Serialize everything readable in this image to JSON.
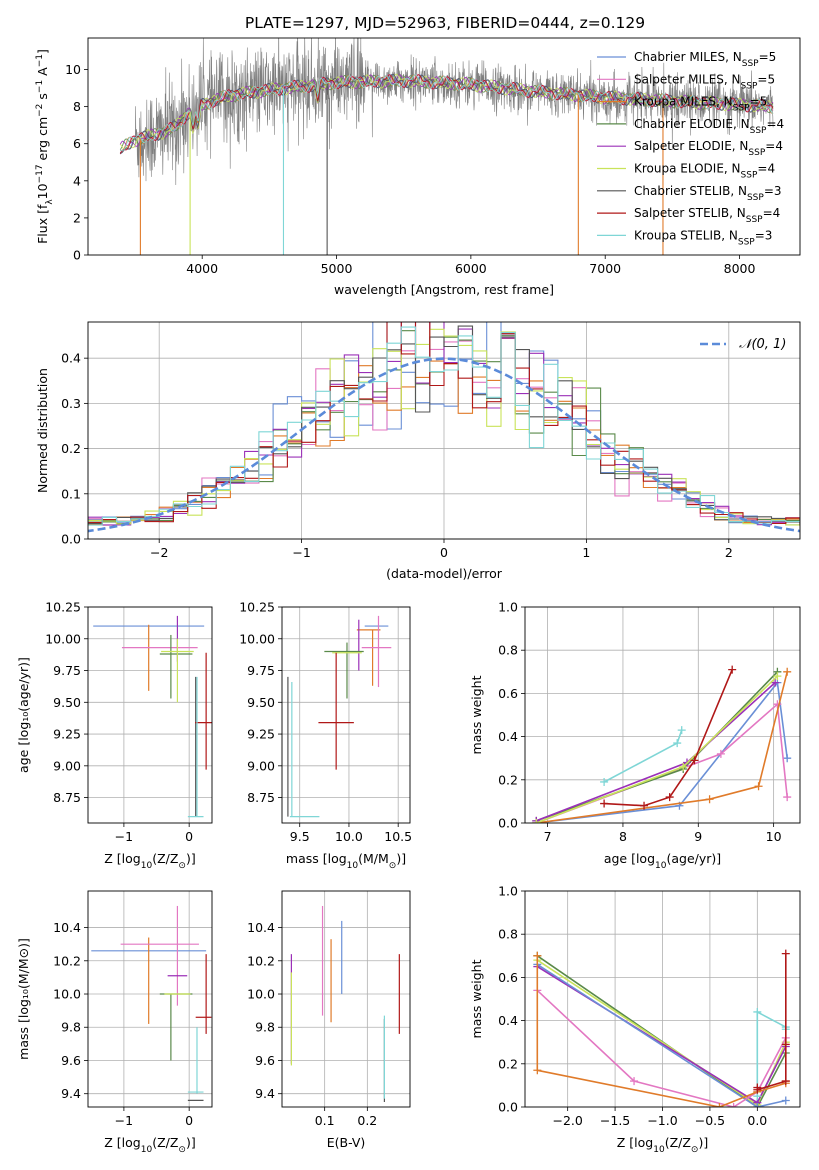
{
  "title": "PLATE=1297, MJD=52963, FIBERID=0444, z=0.129",
  "colors": {
    "chabrier_miles": "#6a8fd6",
    "salpeter_miles": "#e377c2",
    "kroupa_miles": "#e07b2a",
    "chabrier_elodie": "#5a8a4a",
    "salpeter_elodie": "#9b30b8",
    "kroupa_elodie": "#c9e35a",
    "chabrier_stelib": "#555555",
    "salpeter_stelib": "#b01818",
    "kroupa_stelib": "#7fd6d6",
    "gaussian": "#5b8bd9"
  },
  "chart_data": [
    {
      "id": "spectrum",
      "type": "line",
      "xlabel": "wavelength [Angstrom, rest frame]",
      "ylabel_main": "Flux [f",
      "ylabel_sub": "λ",
      "ylabel_rest": "10",
      "ylabel_sup": "−17",
      "ylabel_units": " erg cm",
      "ylabel_sup2": "−2",
      "ylabel_s": " s",
      "ylabel_sup3": "−1",
      "ylabel_a": " A",
      "ylabel_sup4": "−1",
      "ylabel_end": "]",
      "xlim": [
        3150,
        8450
      ],
      "ylim": [
        0,
        11.7
      ],
      "xticks": [
        4000,
        5000,
        6000,
        7000,
        8000
      ],
      "yticks": [
        0,
        2,
        4,
        6,
        8,
        10
      ],
      "legend_position": "upper-right",
      "legend": [
        {
          "name": "Chabrier MILES, N",
          "sub": "SSP",
          "n": "=5",
          "color": "#6a8fd6"
        },
        {
          "name": "Salpeter MILES, N",
          "sub": "SSP",
          "n": "=5",
          "color": "#e377c2"
        },
        {
          "name": "Kroupa MILES, N",
          "sub": "SSP",
          "n": "=5",
          "color": "#e07b2a"
        },
        {
          "name": "Chabrier ELODIE, N",
          "sub": "SSP",
          "n": "=4",
          "color": "#5a8a4a"
        },
        {
          "name": "Salpeter ELODIE, N",
          "sub": "SSP",
          "n": "=4",
          "color": "#9b30b8"
        },
        {
          "name": "Kroupa ELODIE, N",
          "sub": "SSP",
          "n": "=4",
          "color": "#c9e35a"
        },
        {
          "name": "Chabrier STELIB, N",
          "sub": "SSP",
          "n": "=3",
          "color": "#555555"
        },
        {
          "name": "Salpeter STELIB, N",
          "sub": "SSP",
          "n": "=4",
          "color": "#b01818"
        },
        {
          "name": "Kroupa STELIB, N",
          "sub": "SSP",
          "n": "=3",
          "color": "#7fd6d6"
        }
      ],
      "continuum_knots": [
        [
          3390,
          5.7
        ],
        [
          3500,
          6.2
        ],
        [
          3600,
          6.4
        ],
        [
          3700,
          6.6
        ],
        [
          3800,
          6.9
        ],
        [
          3900,
          7.7
        ],
        [
          4000,
          8.1
        ],
        [
          4200,
          8.6
        ],
        [
          4500,
          8.9
        ],
        [
          5000,
          9.3
        ],
        [
          5500,
          9.4
        ],
        [
          6000,
          9.2
        ],
        [
          6500,
          8.8
        ],
        [
          7000,
          8.5
        ],
        [
          7500,
          8.3
        ],
        [
          8000,
          8.1
        ],
        [
          8250,
          8.0
        ]
      ],
      "dips_to_zero": [
        [
          3540,
          "#e07b2a"
        ],
        [
          3910,
          "#c9e35a"
        ],
        [
          4605,
          "#7fd6d6"
        ],
        [
          4930,
          "#555555"
        ],
        [
          6800,
          "#e07b2a"
        ],
        [
          7430,
          "#e07b2a"
        ]
      ]
    },
    {
      "id": "residual-histogram",
      "type": "line",
      "xlabel": "(data-model)/error",
      "ylabel": "Normed distribution",
      "xlim": [
        -2.5,
        2.5
      ],
      "ylim": [
        0,
        0.48
      ],
      "xticks": [
        -2,
        -1,
        0,
        1,
        2
      ],
      "yticks": [
        0.0,
        0.1,
        0.2,
        0.3,
        0.4
      ],
      "ytick_labels": [
        "0.0",
        "0.1",
        "0.2",
        "0.3",
        "0.4"
      ],
      "legend_label": "𝒩(0, 1)",
      "legend_position": "upper-right",
      "bin_width": 0.1,
      "gaussian": {
        "mu": 0,
        "sigma": 1
      }
    },
    {
      "id": "age-vs-Z",
      "type": "scatter",
      "xlabel": "Z [log",
      "xlabel_sub": "10",
      "xlabel_rest": "(Z/Z",
      "xlabel_sub2": "⊙",
      "xlabel_end": ")]",
      "ylabel": "age  [log₁₀(age/yr)]",
      "xlim": [
        -1.55,
        0.35
      ],
      "ylim": [
        8.55,
        10.25
      ],
      "xticks": [
        -1,
        0
      ],
      "yticks": [
        8.75,
        9.0,
        9.25,
        9.5,
        9.75,
        10.0,
        10.25
      ],
      "ytick_labels": [
        "8.75",
        "9.00",
        "9.25",
        "9.50",
        "9.75",
        "10.00",
        "10.25"
      ],
      "points": [
        {
          "x": -0.62,
          "xerr": 0.85,
          "y": 10.1,
          "yerr": 0.0,
          "color": "#6a8fd6"
        },
        {
          "x": -0.62,
          "xerr": 0.0,
          "y": 9.85,
          "yerr": 0.26,
          "color": "#e07b2a"
        },
        {
          "x": -0.45,
          "xerr": 0.58,
          "y": 9.93,
          "yerr": 0.0,
          "color": "#e377c2"
        },
        {
          "x": -0.18,
          "xerr": 0.0,
          "y": 10.0,
          "yerr": 0.18,
          "color": "#9b30b8"
        },
        {
          "x": -0.2,
          "xerr": 0.25,
          "y": 9.88,
          "yerr": 0.0,
          "color": "#5a8a4a"
        },
        {
          "x": -0.28,
          "xerr": 0.0,
          "y": 9.78,
          "yerr": 0.25,
          "color": "#5a8a4a"
        },
        {
          "x": -0.18,
          "xerr": 0.25,
          "y": 9.9,
          "yerr": 0.0,
          "color": "#c9e35a"
        },
        {
          "x": -0.18,
          "xerr": 0.0,
          "y": 9.75,
          "yerr": 0.25,
          "color": "#c9e35a"
        },
        {
          "x": 0.1,
          "xerr": 0.0,
          "y": 9.15,
          "yerr": 0.55,
          "color": "#555555"
        },
        {
          "x": 0.22,
          "xerr": 0.13,
          "y": 9.34,
          "yerr": 0.0,
          "color": "#b01818"
        },
        {
          "x": 0.26,
          "xerr": 0.0,
          "y": 9.43,
          "yerr": 0.46,
          "color": "#b01818"
        },
        {
          "x": 0.1,
          "xerr": 0.12,
          "y": 8.6,
          "yerr": 0.0,
          "color": "#7fd6d6"
        },
        {
          "x": 0.12,
          "xerr": 0.0,
          "y": 9.15,
          "yerr": 0.55,
          "color": "#7fd6d6"
        }
      ]
    },
    {
      "id": "age-vs-mass",
      "type": "scatter",
      "xlabel": "mass [log",
      "xlabel_sub": "10",
      "xlabel_rest": "(M/M",
      "xlabel_sub2": "⊙",
      "xlabel_end": ")]",
      "xlim": [
        9.32,
        10.62
      ],
      "ylim": [
        8.55,
        10.25
      ],
      "xticks": [
        9.5,
        10.0,
        10.5
      ],
      "xtick_labels": [
        "9.5",
        "10.0",
        "10.5"
      ],
      "yticks": [
        8.75,
        9.0,
        9.25,
        9.5,
        9.75,
        10.0,
        10.25
      ],
      "ytick_labels": [
        "8.75",
        "9.00",
        "9.25",
        "9.50",
        "9.75",
        "10.00",
        "10.25"
      ],
      "points": [
        {
          "x": 10.28,
          "xerr": 0.12,
          "y": 10.1,
          "yerr": 0.0,
          "color": "#6a8fd6"
        },
        {
          "x": 10.2,
          "xerr": 0.12,
          "y": 10.07,
          "yerr": 0.0,
          "color": "#e07b2a"
        },
        {
          "x": 10.24,
          "xerr": 0.0,
          "y": 9.85,
          "yerr": 0.22,
          "color": "#e07b2a"
        },
        {
          "x": 10.28,
          "xerr": 0.15,
          "y": 9.93,
          "yerr": 0.0,
          "color": "#e377c2"
        },
        {
          "x": 10.3,
          "xerr": 0.0,
          "y": 9.9,
          "yerr": 0.28,
          "color": "#e377c2"
        },
        {
          "x": 10.1,
          "xerr": 0.0,
          "y": 9.95,
          "yerr": 0.2,
          "color": "#9b30b8"
        },
        {
          "x": 9.95,
          "xerr": 0.2,
          "y": 9.9,
          "yerr": 0.0,
          "color": "#5a8a4a"
        },
        {
          "x": 9.98,
          "xerr": 0.0,
          "y": 9.75,
          "yerr": 0.22,
          "color": "#5a8a4a"
        },
        {
          "x": 9.98,
          "xerr": 0.15,
          "y": 9.89,
          "yerr": 0.0,
          "color": "#c9e35a"
        },
        {
          "x": 9.87,
          "xerr": 0.0,
          "y": 9.43,
          "yerr": 0.46,
          "color": "#b01818"
        },
        {
          "x": 9.87,
          "xerr": 0.18,
          "y": 9.34,
          "yerr": 0.0,
          "color": "#b01818"
        },
        {
          "x": 9.38,
          "xerr": 0.0,
          "y": 9.15,
          "yerr": 0.55,
          "color": "#555555"
        },
        {
          "x": 9.42,
          "xerr": 0.0,
          "y": 9.13,
          "yerr": 0.53,
          "color": "#7fd6d6"
        },
        {
          "x": 9.55,
          "xerr": 0.15,
          "y": 8.6,
          "yerr": 0.0,
          "color": "#7fd6d6"
        }
      ]
    },
    {
      "id": "mass-weight-vs-age",
      "type": "line",
      "xlabel": "age  [log",
      "xlabel_sub": "10",
      "xlabel_rest": "(age/yr)]",
      "ylabel": "mass weight",
      "xlim": [
        6.7,
        10.35
      ],
      "ylim": [
        0,
        1
      ],
      "xticks": [
        7,
        8,
        9,
        10
      ],
      "yticks": [
        0,
        0.2,
        0.4,
        0.6,
        0.8,
        1.0
      ],
      "ytick_labels": [
        "0.0",
        "0.2",
        "0.4",
        "0.6",
        "0.8",
        "1.0"
      ],
      "series": [
        {
          "color": "#7fd6d6",
          "x": [
            7.75,
            8.72,
            8.78
          ],
          "y": [
            0.19,
            0.37,
            0.43
          ]
        },
        {
          "color": "#6a8fd6",
          "x": [
            6.85,
            8.75,
            10.05,
            10.18
          ],
          "y": [
            0.0,
            0.08,
            0.65,
            0.3
          ]
        },
        {
          "color": "#e377c2",
          "x": [
            6.85,
            9.3,
            10.05,
            10.18
          ],
          "y": [
            0.0,
            0.32,
            0.55,
            0.12
          ]
        },
        {
          "color": "#e07b2a",
          "x": [
            6.85,
            9.15,
            9.8,
            10.18
          ],
          "y": [
            0.0,
            0.11,
            0.17,
            0.7
          ]
        },
        {
          "color": "#5a8a4a",
          "x": [
            6.85,
            8.8,
            10.05
          ],
          "y": [
            0.01,
            0.25,
            0.7
          ]
        },
        {
          "color": "#9b30b8",
          "x": [
            6.85,
            8.85,
            10.02
          ],
          "y": [
            0.01,
            0.28,
            0.65
          ]
        },
        {
          "color": "#c9e35a",
          "x": [
            6.85,
            8.8,
            10.05
          ],
          "y": [
            0.0,
            0.26,
            0.68
          ]
        },
        {
          "color": "#b01818",
          "x": [
            7.75,
            8.28,
            8.62,
            8.95,
            9.45
          ],
          "y": [
            0.09,
            0.08,
            0.12,
            0.29,
            0.71
          ]
        }
      ]
    },
    {
      "id": "mass-vs-Z",
      "type": "scatter",
      "xlabel": "Z [log",
      "xlabel_sub": "10",
      "xlabel_rest": "(Z/Z",
      "xlabel_sub2": "⊙",
      "xlabel_end": ")]",
      "ylabel": "mass [log₁₀(M/M⊙)]",
      "xlim": [
        -1.55,
        0.35
      ],
      "ylim": [
        9.32,
        10.62
      ],
      "xticks": [
        -1,
        0
      ],
      "yticks": [
        9.4,
        9.6,
        9.8,
        10.0,
        10.2,
        10.4
      ],
      "ytick_labels": [
        "9.4",
        "9.6",
        "9.8",
        "10.0",
        "10.2",
        "10.4"
      ],
      "points": [
        {
          "x": -0.62,
          "xerr": 0.88,
          "y": 10.26,
          "yerr": 0.0,
          "color": "#6a8fd6"
        },
        {
          "x": -0.62,
          "xerr": 0.0,
          "y": 10.08,
          "yerr": 0.26,
          "color": "#e07b2a"
        },
        {
          "x": -0.45,
          "xerr": 0.6,
          "y": 10.3,
          "yerr": 0.0,
          "color": "#e377c2"
        },
        {
          "x": -0.18,
          "xerr": 0.0,
          "y": 10.23,
          "yerr": 0.3,
          "color": "#e377c2"
        },
        {
          "x": -0.18,
          "xerr": 0.15,
          "y": 10.11,
          "yerr": 0.0,
          "color": "#9b30b8"
        },
        {
          "x": -0.2,
          "xerr": 0.25,
          "y": 10.0,
          "yerr": 0.0,
          "color": "#5a8a4a"
        },
        {
          "x": -0.28,
          "xerr": 0.0,
          "y": 9.8,
          "yerr": 0.2,
          "color": "#5a8a4a"
        },
        {
          "x": -0.18,
          "xerr": 0.2,
          "y": 10.0,
          "yerr": 0.0,
          "color": "#c9e35a"
        },
        {
          "x": 0.22,
          "xerr": 0.12,
          "y": 9.86,
          "yerr": 0.0,
          "color": "#b01818"
        },
        {
          "x": 0.26,
          "xerr": 0.0,
          "y": 10.0,
          "yerr": 0.24,
          "color": "#b01818"
        },
        {
          "x": 0.1,
          "xerr": 0.12,
          "y": 9.36,
          "yerr": 0.0,
          "color": "#555555"
        },
        {
          "x": 0.1,
          "xerr": 0.12,
          "y": 9.41,
          "yerr": 0.0,
          "color": "#7fd6d6"
        },
        {
          "x": 0.12,
          "xerr": 0.0,
          "y": 9.6,
          "yerr": 0.2,
          "color": "#7fd6d6"
        }
      ]
    },
    {
      "id": "mass-vs-EBV",
      "type": "scatter",
      "xlabel": "E(B-V)",
      "xlim": [
        0.0,
        0.3
      ],
      "ylim": [
        9.32,
        10.62
      ],
      "xticks": [
        0.1,
        0.2
      ],
      "xtick_labels": [
        "0.1",
        "0.2"
      ],
      "yticks": [
        9.4,
        9.6,
        9.8,
        10.0,
        10.2,
        10.4
      ],
      "ytick_labels": [
        "9.4",
        "9.6",
        "9.8",
        "10.0",
        "10.2",
        "10.4"
      ],
      "points": [
        {
          "x": 0.022,
          "xerr": 0.0,
          "y": 9.91,
          "yerr": 0.33,
          "color": "#9b30b8"
        },
        {
          "x": 0.022,
          "xerr": 0.0,
          "y": 9.85,
          "yerr": 0.28,
          "color": "#c9e35a"
        },
        {
          "x": 0.095,
          "xerr": 0.0,
          "y": 10.2,
          "yerr": 0.33,
          "color": "#e377c2"
        },
        {
          "x": 0.115,
          "xerr": 0.0,
          "y": 10.08,
          "yerr": 0.25,
          "color": "#e07b2a"
        },
        {
          "x": 0.14,
          "xerr": 0.0,
          "y": 10.22,
          "yerr": 0.22,
          "color": "#6a8fd6"
        },
        {
          "x": 0.24,
          "xerr": 0.0,
          "y": 9.6,
          "yerr": 0.25,
          "color": "#555555"
        },
        {
          "x": 0.24,
          "xerr": 0.0,
          "y": 9.62,
          "yerr": 0.25,
          "color": "#7fd6d6"
        },
        {
          "x": 0.275,
          "xerr": 0.0,
          "y": 10.0,
          "yerr": 0.24,
          "color": "#b01818"
        }
      ]
    },
    {
      "id": "mass-weight-vs-Z",
      "type": "line",
      "xlabel": "Z [log",
      "xlabel_sub": "10",
      "xlabel_rest": "(Z/Z",
      "xlabel_sub2": "⊙",
      "xlabel_end": ")]",
      "ylabel": "mass weight",
      "xlim": [
        -2.45,
        0.45
      ],
      "ylim": [
        0,
        1
      ],
      "xticks": [
        -2.0,
        -1.5,
        -1.0,
        -0.5,
        0.0
      ],
      "xtick_labels": [
        "−2.0",
        "−1.5",
        "−1.0",
        "−0.5",
        "0.0"
      ],
      "yticks": [
        0,
        0.2,
        0.4,
        0.6,
        0.8,
        1.0
      ],
      "ytick_labels": [
        "0.0",
        "0.2",
        "0.4",
        "0.6",
        "0.8",
        "1.0"
      ],
      "series": [
        {
          "color": "#5a8a4a",
          "x": [
            -2.32,
            0.0,
            0.3
          ],
          "y": [
            0.7,
            0.0,
            0.25
          ]
        },
        {
          "color": "#c9e35a",
          "x": [
            -2.32,
            0.0,
            0.3
          ],
          "y": [
            0.68,
            0.01,
            0.3
          ]
        },
        {
          "color": "#9b30b8",
          "x": [
            -2.32,
            0.0,
            0.3
          ],
          "y": [
            0.65,
            0.02,
            0.28
          ]
        },
        {
          "color": "#6a8fd6",
          "x": [
            -2.32,
            0.0,
            0.3
          ],
          "y": [
            0.66,
            0.0,
            0.03
          ]
        },
        {
          "color": "#e377c2",
          "x": [
            -2.32,
            -1.3,
            -0.25,
            0.0,
            0.3
          ],
          "y": [
            0.54,
            0.12,
            0.0,
            0.07,
            0.32
          ]
        },
        {
          "color": "#e07b2a",
          "x": [
            -2.32,
            -2.32,
            -0.4,
            0.0,
            0.3,
            0.3
          ],
          "y": [
            0.7,
            0.17,
            0.0,
            0.07,
            0.11,
            0.12
          ]
        },
        {
          "color": "#7fd6d6",
          "x": [
            0.0,
            0.0,
            0.3,
            0.3
          ],
          "y": [
            0.05,
            0.44,
            0.37,
            0.36
          ]
        },
        {
          "color": "#b01818",
          "x": [
            0.0,
            0.0,
            0.3,
            0.3,
            0.3
          ],
          "y": [
            0.09,
            0.08,
            0.12,
            0.29,
            0.71
          ]
        }
      ]
    }
  ]
}
